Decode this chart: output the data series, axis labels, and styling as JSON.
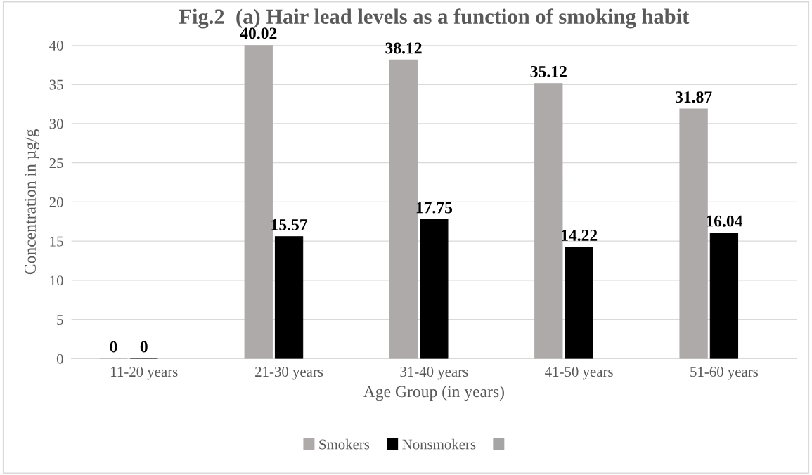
{
  "chart_data": {
    "type": "bar",
    "title": "Fig.2  (a) Hair lead levels as a function of smoking habit",
    "xlabel": "Age Group (in years)",
    "ylabel": "Concentration in µg/g",
    "categories": [
      "11-20 years",
      "21-30 years",
      "31-40 years",
      "41-50 years",
      "51-60 years"
    ],
    "series": [
      {
        "name": "Smokers",
        "color": "#aeaaaa",
        "values": [
          0,
          40.02,
          38.12,
          35.12,
          31.87
        ]
      },
      {
        "name": "Nonsmokers",
        "color": "#000000",
        "values": [
          0,
          15.57,
          17.75,
          14.22,
          16.04
        ]
      },
      {
        "color": "#a5a5a5",
        "values": [
          null,
          null,
          null,
          null,
          null
        ]
      }
    ],
    "ylim": [
      0,
      40.02
    ],
    "yticks": [
      0,
      5,
      10,
      15,
      20,
      25,
      30,
      35,
      40
    ],
    "grid": "y",
    "legend": "bottom",
    "data_labels": true
  }
}
